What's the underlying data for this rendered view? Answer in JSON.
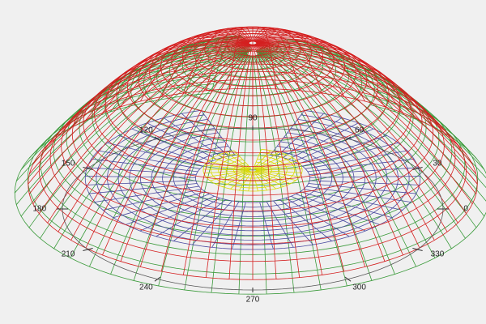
{
  "chart_data": {
    "type": "polar3d",
    "angle_ticks": [
      0,
      30,
      60,
      90,
      120,
      150,
      180,
      210,
      240,
      270,
      300,
      330
    ]
  }
}
